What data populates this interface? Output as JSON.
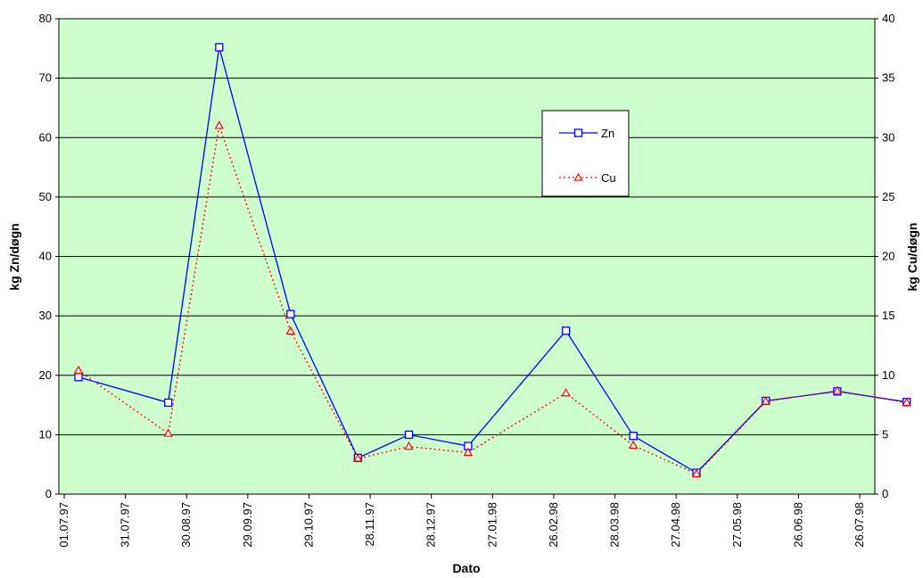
{
  "chart_data": {
    "type": "line",
    "title": "",
    "xlabel": "Dato",
    "ylabel_left": "kg Zn/døgn",
    "ylabel_right": "kg Cu/døgn",
    "x_tick_labels": [
      "01.07.97",
      "31.07.97",
      "30.08.97",
      "29.09.97",
      "29.10.97",
      "28.11.97",
      "28.12.97",
      "27.01.98",
      "26.02.98",
      "28.03.98",
      "27.04.98",
      "27.05.98",
      "26.06.98",
      "26.07.98"
    ],
    "ylim_left": [
      0,
      80
    ],
    "yticks_left": [
      0,
      10,
      20,
      30,
      40,
      50,
      60,
      70,
      80
    ],
    "ylim_right": [
      0,
      40
    ],
    "yticks_right": [
      0,
      5,
      10,
      15,
      20,
      25,
      30,
      35,
      40
    ],
    "grid": true,
    "plot_background": "#ccffcc",
    "legend": {
      "placement": "upper-right-inside",
      "entries": [
        "Zn",
        "Cu"
      ]
    },
    "x": [
      "08.07.97",
      "21.08.97",
      "15.09.97",
      "20.10.97",
      "22.11.97",
      "17.12.97",
      "15.01.98",
      "04.03.98",
      "06.04.98",
      "07.05.98",
      "10.06.98",
      "15.07.98",
      "18.08.98"
    ],
    "series": [
      {
        "name": "Zn",
        "axis": "left",
        "color": "#0000ff",
        "line": "solid",
        "marker": "square",
        "values": [
          19.7,
          15.4,
          75.2,
          30.3,
          6.1,
          10.0,
          8.1,
          27.5,
          9.8,
          3.6,
          15.7,
          17.3,
          15.5
        ]
      },
      {
        "name": "Cu",
        "axis": "right",
        "color": "#ff0000",
        "line": "dotted",
        "marker": "triangle",
        "values": [
          10.4,
          5.1,
          31.0,
          13.7,
          3.0,
          4.0,
          3.5,
          8.5,
          4.1,
          1.7,
          7.8,
          8.7,
          7.7
        ]
      }
    ]
  }
}
